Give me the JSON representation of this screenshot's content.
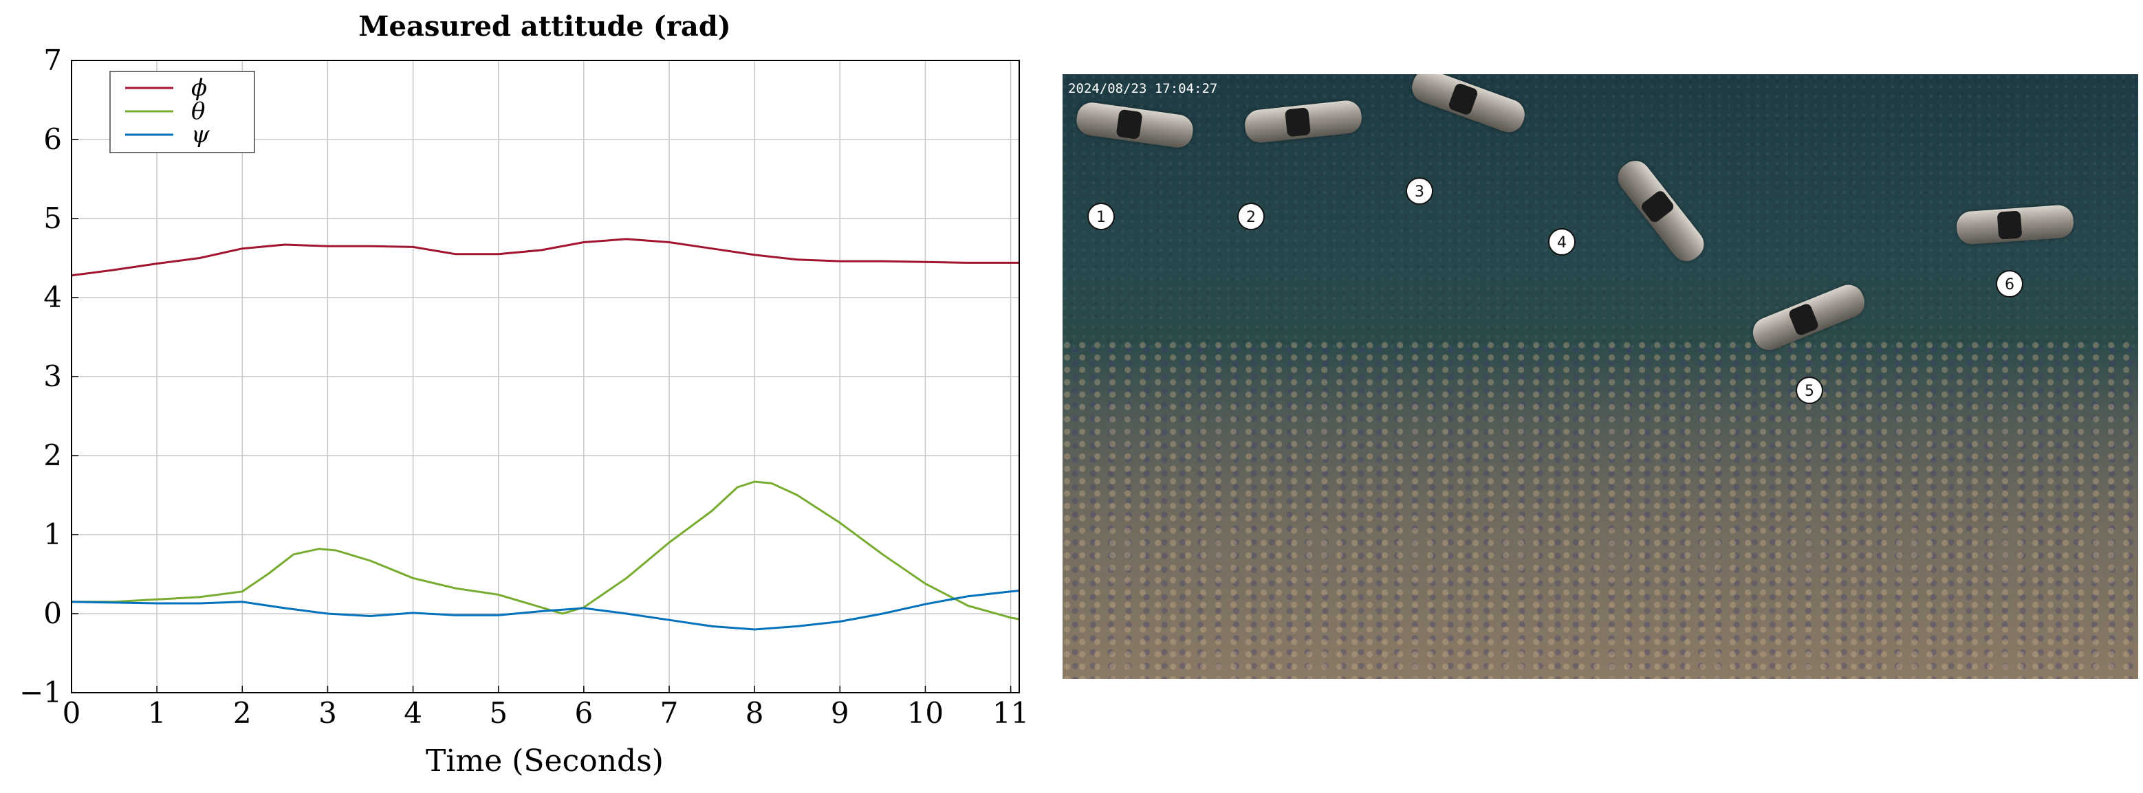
{
  "chart_data": {
    "type": "line",
    "title": "Measured attitude (rad)",
    "xlabel": "Time (Seconds)",
    "ylabel": "",
    "xlim": [
      0,
      11.1
    ],
    "ylim": [
      -1,
      7
    ],
    "xticks": [
      0,
      1,
      2,
      3,
      4,
      5,
      6,
      7,
      8,
      9,
      10,
      11
    ],
    "yticks": [
      -1,
      0,
      1,
      2,
      3,
      4,
      5,
      6,
      7
    ],
    "grid": true,
    "legend": "top-left",
    "series": [
      {
        "name": "ϕ",
        "color": "#a2142f",
        "x": [
          0,
          0.5,
          1,
          1.5,
          2,
          2.5,
          3,
          3.5,
          4,
          4.5,
          5,
          5.5,
          6,
          6.5,
          7,
          7.5,
          8,
          8.5,
          9,
          9.5,
          10,
          10.5,
          11,
          11.1
        ],
        "y": [
          4.28,
          4.35,
          4.43,
          4.5,
          4.62,
          4.67,
          4.65,
          4.65,
          4.64,
          4.55,
          4.55,
          4.6,
          4.7,
          4.74,
          4.7,
          4.62,
          4.54,
          4.48,
          4.46,
          4.46,
          4.45,
          4.44,
          4.44,
          4.44
        ]
      },
      {
        "name": "θ",
        "color": "#77ac30",
        "x": [
          0,
          0.5,
          1,
          1.5,
          2,
          2.3,
          2.6,
          2.9,
          3.1,
          3.5,
          4,
          4.5,
          5,
          5.5,
          5.75,
          6,
          6.5,
          7,
          7.5,
          7.8,
          8,
          8.2,
          8.5,
          9,
          9.5,
          10,
          10.5,
          11,
          11.1
        ],
        "y": [
          0.15,
          0.15,
          0.18,
          0.21,
          0.28,
          0.5,
          0.75,
          0.82,
          0.8,
          0.67,
          0.45,
          0.32,
          0.24,
          0.08,
          0.0,
          0.08,
          0.45,
          0.9,
          1.3,
          1.6,
          1.67,
          1.65,
          1.5,
          1.15,
          0.75,
          0.38,
          0.1,
          -0.05,
          -0.07
        ]
      },
      {
        "name": "ψ",
        "color": "#0072bd",
        "x": [
          0,
          0.5,
          1,
          1.5,
          2,
          2.5,
          3,
          3.5,
          4,
          4.5,
          5,
          5.5,
          6,
          6.5,
          7,
          7.5,
          8,
          8.5,
          9,
          9.5,
          10,
          10.5,
          11,
          11.1
        ],
        "y": [
          0.15,
          0.14,
          0.13,
          0.13,
          0.15,
          0.07,
          0.0,
          -0.03,
          0.01,
          -0.02,
          -0.02,
          0.03,
          0.07,
          0.0,
          -0.08,
          -0.16,
          -0.2,
          -0.16,
          -0.1,
          0.0,
          0.12,
          0.22,
          0.28,
          0.29
        ]
      }
    ]
  },
  "photo": {
    "timestamp": "2024/08/23 17:04:27",
    "markers": [
      "1",
      "2",
      "3",
      "4",
      "5",
      "6"
    ]
  }
}
